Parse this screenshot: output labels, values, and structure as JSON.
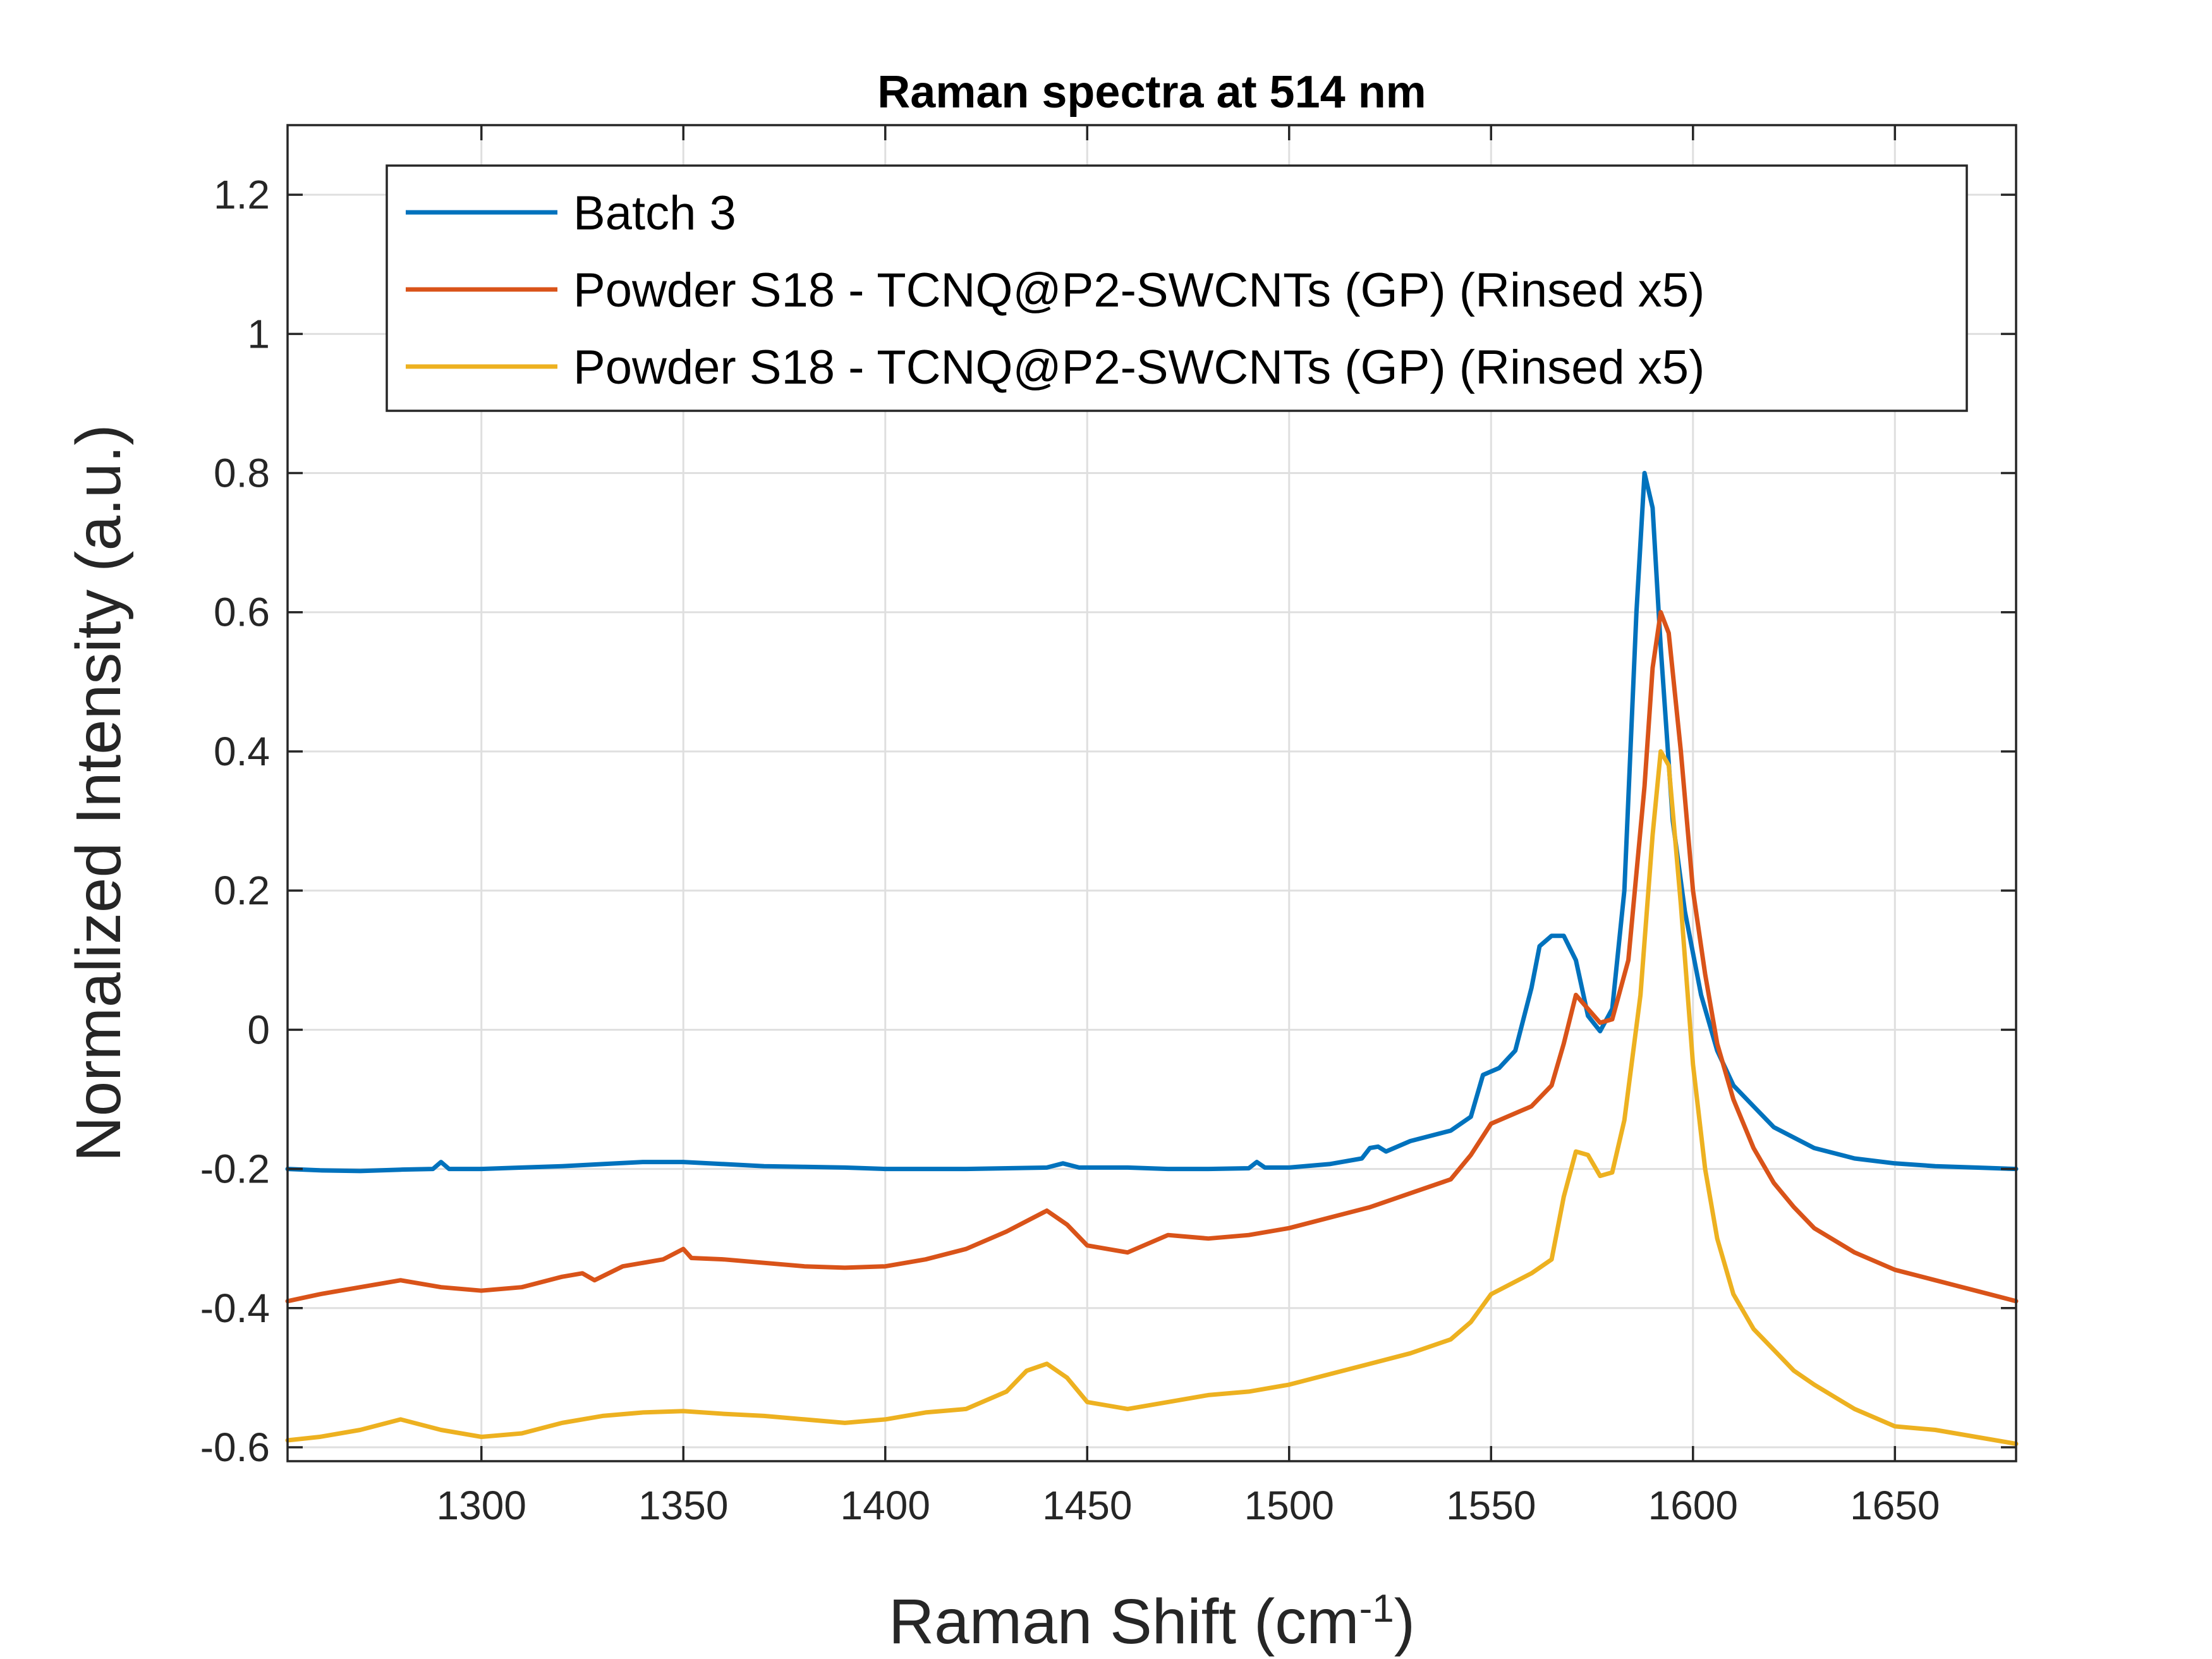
{
  "chart_data": {
    "type": "line",
    "title": "Raman spectra at 514 nm",
    "xlabel": "Raman Shift (cm",
    "xlabel_sup": "-1",
    "xlabel_end": ")",
    "ylabel": "Normalized Intensity (a.u.)",
    "xlim": [
      1252,
      1680
    ],
    "ylim": [
      -0.62,
      1.3
    ],
    "x_ticks": [
      1300,
      1350,
      1400,
      1450,
      1500,
      1550,
      1600,
      1650
    ],
    "y_ticks": [
      -0.6,
      -0.4,
      -0.2,
      0,
      0.2,
      0.4,
      0.6,
      0.8,
      1,
      1.2
    ],
    "y_tick_labels": [
      "-0.6",
      "-0.4",
      "-0.2",
      "0",
      "0.2",
      "0.4",
      "0.6",
      "0.8",
      "1",
      "1.2"
    ],
    "grid": true,
    "legend_position": "top-right",
    "series": [
      {
        "name": "Batch 3",
        "color": "#0072BD",
        "points": [
          [
            1252,
            -0.2
          ],
          [
            1260,
            -0.202
          ],
          [
            1270,
            -0.203
          ],
          [
            1280,
            -0.201
          ],
          [
            1288,
            -0.2
          ],
          [
            1290,
            -0.19
          ],
          [
            1292,
            -0.2
          ],
          [
            1300,
            -0.2
          ],
          [
            1310,
            -0.198
          ],
          [
            1320,
            -0.196
          ],
          [
            1330,
            -0.193
          ],
          [
            1340,
            -0.19
          ],
          [
            1350,
            -0.19
          ],
          [
            1360,
            -0.193
          ],
          [
            1370,
            -0.196
          ],
          [
            1380,
            -0.197
          ],
          [
            1390,
            -0.198
          ],
          [
            1400,
            -0.2
          ],
          [
            1420,
            -0.2
          ],
          [
            1440,
            -0.198
          ],
          [
            1444,
            -0.192
          ],
          [
            1448,
            -0.198
          ],
          [
            1460,
            -0.198
          ],
          [
            1470,
            -0.2
          ],
          [
            1480,
            -0.2
          ],
          [
            1490,
            -0.199
          ],
          [
            1492,
            -0.19
          ],
          [
            1494,
            -0.198
          ],
          [
            1500,
            -0.198
          ],
          [
            1510,
            -0.193
          ],
          [
            1518,
            -0.185
          ],
          [
            1520,
            -0.17
          ],
          [
            1522,
            -0.168
          ],
          [
            1524,
            -0.175
          ],
          [
            1530,
            -0.16
          ],
          [
            1540,
            -0.145
          ],
          [
            1545,
            -0.125
          ],
          [
            1548,
            -0.065
          ],
          [
            1552,
            -0.055
          ],
          [
            1556,
            -0.03
          ],
          [
            1560,
            0.06
          ],
          [
            1562,
            0.12
          ],
          [
            1565,
            0.135
          ],
          [
            1568,
            0.135
          ],
          [
            1571,
            0.1
          ],
          [
            1574,
            0.02
          ],
          [
            1577,
            -0.002
          ],
          [
            1580,
            0.03
          ],
          [
            1583,
            0.2
          ],
          [
            1586,
            0.6
          ],
          [
            1588,
            0.8
          ],
          [
            1590,
            0.75
          ],
          [
            1592,
            0.55
          ],
          [
            1595,
            0.3
          ],
          [
            1598,
            0.17
          ],
          [
            1602,
            0.05
          ],
          [
            1606,
            -0.03
          ],
          [
            1610,
            -0.08
          ],
          [
            1615,
            -0.11
          ],
          [
            1620,
            -0.14
          ],
          [
            1625,
            -0.155
          ],
          [
            1630,
            -0.17
          ],
          [
            1640,
            -0.185
          ],
          [
            1650,
            -0.192
          ],
          [
            1660,
            -0.196
          ],
          [
            1670,
            -0.198
          ],
          [
            1680,
            -0.2
          ]
        ]
      },
      {
        "name": "Powder S18 - TCNQ@P2-SWCNTs (GP) (Rinsed x5)",
        "color": "#D95319",
        "points": [
          [
            1252,
            -0.39
          ],
          [
            1260,
            -0.38
          ],
          [
            1270,
            -0.37
          ],
          [
            1280,
            -0.36
          ],
          [
            1290,
            -0.37
          ],
          [
            1300,
            -0.375
          ],
          [
            1310,
            -0.37
          ],
          [
            1320,
            -0.355
          ],
          [
            1325,
            -0.35
          ],
          [
            1328,
            -0.36
          ],
          [
            1335,
            -0.34
          ],
          [
            1345,
            -0.33
          ],
          [
            1350,
            -0.315
          ],
          [
            1352,
            -0.328
          ],
          [
            1360,
            -0.33
          ],
          [
            1370,
            -0.335
          ],
          [
            1380,
            -0.34
          ],
          [
            1390,
            -0.342
          ],
          [
            1400,
            -0.34
          ],
          [
            1410,
            -0.33
          ],
          [
            1420,
            -0.315
          ],
          [
            1430,
            -0.29
          ],
          [
            1440,
            -0.26
          ],
          [
            1445,
            -0.28
          ],
          [
            1450,
            -0.31
          ],
          [
            1460,
            -0.32
          ],
          [
            1470,
            -0.295
          ],
          [
            1480,
            -0.3
          ],
          [
            1490,
            -0.295
          ],
          [
            1500,
            -0.285
          ],
          [
            1510,
            -0.27
          ],
          [
            1520,
            -0.255
          ],
          [
            1530,
            -0.235
          ],
          [
            1540,
            -0.215
          ],
          [
            1545,
            -0.18
          ],
          [
            1550,
            -0.135
          ],
          [
            1560,
            -0.11
          ],
          [
            1565,
            -0.08
          ],
          [
            1568,
            -0.02
          ],
          [
            1571,
            0.05
          ],
          [
            1574,
            0.03
          ],
          [
            1577,
            0.01
          ],
          [
            1580,
            0.015
          ],
          [
            1584,
            0.1
          ],
          [
            1588,
            0.35
          ],
          [
            1590,
            0.52
          ],
          [
            1592,
            0.6
          ],
          [
            1594,
            0.57
          ],
          [
            1597,
            0.4
          ],
          [
            1600,
            0.2
          ],
          [
            1603,
            0.08
          ],
          [
            1606,
            -0.02
          ],
          [
            1610,
            -0.1
          ],
          [
            1615,
            -0.17
          ],
          [
            1620,
            -0.22
          ],
          [
            1625,
            -0.255
          ],
          [
            1630,
            -0.285
          ],
          [
            1640,
            -0.32
          ],
          [
            1650,
            -0.345
          ],
          [
            1660,
            -0.36
          ],
          [
            1670,
            -0.375
          ],
          [
            1680,
            -0.39
          ]
        ]
      },
      {
        "name": "Powder S18 - TCNQ@P2-SWCNTs (GP) (Rinsed x5)",
        "color": "#EDB120",
        "points": [
          [
            1252,
            -0.59
          ],
          [
            1260,
            -0.585
          ],
          [
            1270,
            -0.575
          ],
          [
            1280,
            -0.56
          ],
          [
            1290,
            -0.575
          ],
          [
            1300,
            -0.585
          ],
          [
            1310,
            -0.58
          ],
          [
            1320,
            -0.565
          ],
          [
            1330,
            -0.555
          ],
          [
            1340,
            -0.55
          ],
          [
            1350,
            -0.548
          ],
          [
            1360,
            -0.552
          ],
          [
            1370,
            -0.555
          ],
          [
            1380,
            -0.56
          ],
          [
            1390,
            -0.565
          ],
          [
            1400,
            -0.56
          ],
          [
            1410,
            -0.55
          ],
          [
            1420,
            -0.545
          ],
          [
            1430,
            -0.52
          ],
          [
            1435,
            -0.49
          ],
          [
            1440,
            -0.48
          ],
          [
            1445,
            -0.5
          ],
          [
            1450,
            -0.535
          ],
          [
            1460,
            -0.545
          ],
          [
            1470,
            -0.535
          ],
          [
            1480,
            -0.525
          ],
          [
            1490,
            -0.52
          ],
          [
            1500,
            -0.51
          ],
          [
            1510,
            -0.495
          ],
          [
            1520,
            -0.48
          ],
          [
            1530,
            -0.465
          ],
          [
            1540,
            -0.445
          ],
          [
            1545,
            -0.42
          ],
          [
            1550,
            -0.38
          ],
          [
            1560,
            -0.35
          ],
          [
            1565,
            -0.33
          ],
          [
            1568,
            -0.24
          ],
          [
            1571,
            -0.175
          ],
          [
            1574,
            -0.18
          ],
          [
            1577,
            -0.21
          ],
          [
            1580,
            -0.205
          ],
          [
            1583,
            -0.13
          ],
          [
            1587,
            0.05
          ],
          [
            1590,
            0.28
          ],
          [
            1592,
            0.4
          ],
          [
            1594,
            0.38
          ],
          [
            1597,
            0.18
          ],
          [
            1600,
            -0.05
          ],
          [
            1603,
            -0.2
          ],
          [
            1606,
            -0.3
          ],
          [
            1610,
            -0.38
          ],
          [
            1615,
            -0.43
          ],
          [
            1620,
            -0.46
          ],
          [
            1625,
            -0.49
          ],
          [
            1630,
            -0.51
          ],
          [
            1640,
            -0.545
          ],
          [
            1650,
            -0.57
          ],
          [
            1660,
            -0.575
          ],
          [
            1670,
            -0.585
          ],
          [
            1680,
            -0.595
          ]
        ]
      }
    ]
  }
}
